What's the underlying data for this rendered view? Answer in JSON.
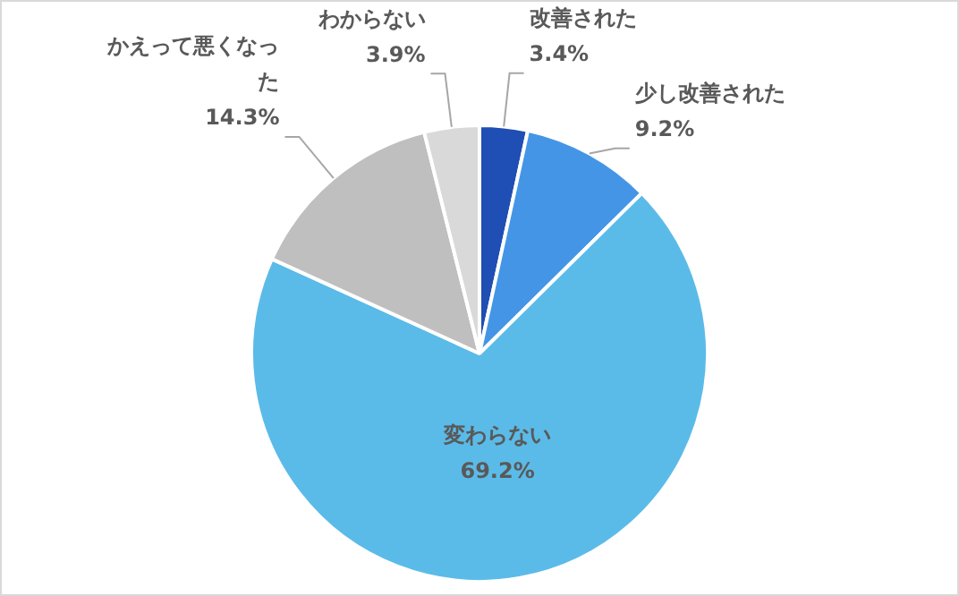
{
  "chart_data": {
    "type": "pie",
    "categories": [
      "改善された",
      "少し改善された",
      "変わらない",
      "かえって悪くなった",
      "わからない"
    ],
    "values": [
      3.4,
      9.2,
      69.2,
      14.3,
      3.9
    ],
    "value_labels": [
      "3.4%",
      "9.2%",
      "69.2%",
      "14.3%",
      "3.9%"
    ],
    "colors": [
      "#1f4eb4",
      "#4495e6",
      "#5bbbe8",
      "#bfbfbf",
      "#d9d9d9"
    ],
    "legend": false
  }
}
